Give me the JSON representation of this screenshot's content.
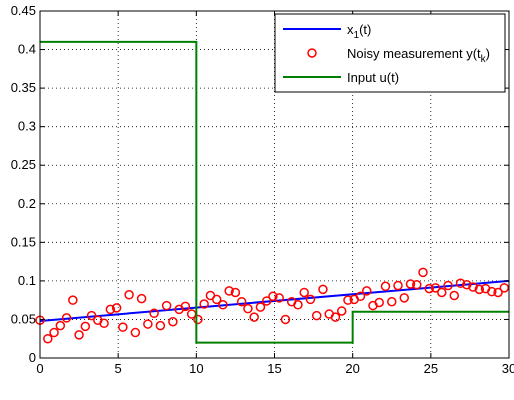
{
  "chart_data": {
    "type": "line",
    "xlim": [
      0,
      30
    ],
    "ylim": [
      0,
      0.45
    ],
    "xticks": [
      "0",
      "5",
      "10",
      "15",
      "20",
      "25",
      "30"
    ],
    "yticks": [
      "0",
      "0.05",
      "0.1",
      "0.15",
      "0.2",
      "0.25",
      "0.3",
      "0.35",
      "0.4",
      "0.45"
    ],
    "grid": true,
    "grid_style": "dotted",
    "legend_position": "top-right",
    "series": [
      {
        "name": "x",
        "name_subscript": "1",
        "name_suffix": "(t)",
        "style": "line",
        "color": "#0000ff",
        "x": [
          0,
          30
        ],
        "y": [
          0.048,
          0.1
        ]
      },
      {
        "name": "Noisy measurement y(t",
        "name_subscript": "k",
        "name_suffix": ")",
        "style": "markers",
        "marker": "circle",
        "color": "#ff0000",
        "x": [
          0,
          0.5,
          0.9,
          1.3,
          1.7,
          2.1,
          2.5,
          2.9,
          3.3,
          3.7,
          4.1,
          4.5,
          4.9,
          5.3,
          5.7,
          6.1,
          6.5,
          6.9,
          7.3,
          7.7,
          8.1,
          8.5,
          8.9,
          9.3,
          9.7,
          10.1,
          10.5,
          10.9,
          11.3,
          11.7,
          12.1,
          12.5,
          12.9,
          13.3,
          13.7,
          14.1,
          14.5,
          14.9,
          15.3,
          15.7,
          16.1,
          16.5,
          16.9,
          17.3,
          17.7,
          18.1,
          18.5,
          18.9,
          19.3,
          19.7,
          20.1,
          20.5,
          20.9,
          21.3,
          21.7,
          22.1,
          22.5,
          22.9,
          23.3,
          23.7,
          24.1,
          24.5,
          24.9,
          25.3,
          25.7,
          26.1,
          26.5,
          26.9,
          27.3,
          27.7,
          28.1,
          28.5,
          28.9,
          29.3,
          29.7
        ],
        "y": [
          0.049,
          0.025,
          0.033,
          0.042,
          0.052,
          0.075,
          0.03,
          0.041,
          0.055,
          0.049,
          0.045,
          0.063,
          0.065,
          0.04,
          0.082,
          0.033,
          0.077,
          0.044,
          0.058,
          0.042,
          0.068,
          0.047,
          0.063,
          0.067,
          0.057,
          0.05,
          0.07,
          0.081,
          0.076,
          0.069,
          0.087,
          0.085,
          0.073,
          0.064,
          0.053,
          0.066,
          0.074,
          0.08,
          0.078,
          0.05,
          0.073,
          0.069,
          0.085,
          0.076,
          0.055,
          0.089,
          0.057,
          0.053,
          0.061,
          0.075,
          0.076,
          0.08,
          0.087,
          0.068,
          0.072,
          0.093,
          0.073,
          0.094,
          0.078,
          0.096,
          0.095,
          0.111,
          0.09,
          0.091,
          0.085,
          0.094,
          0.081,
          0.097,
          0.095,
          0.092,
          0.089,
          0.09,
          0.086,
          0.085,
          0.091
        ]
      },
      {
        "name": "Input u(t)",
        "name_subscript": "",
        "name_suffix": "",
        "style": "step",
        "color": "#008000",
        "x": [
          0,
          10,
          10,
          20,
          20,
          30
        ],
        "y": [
          0.41,
          0.41,
          0.02,
          0.02,
          0.06,
          0.06
        ]
      }
    ]
  }
}
